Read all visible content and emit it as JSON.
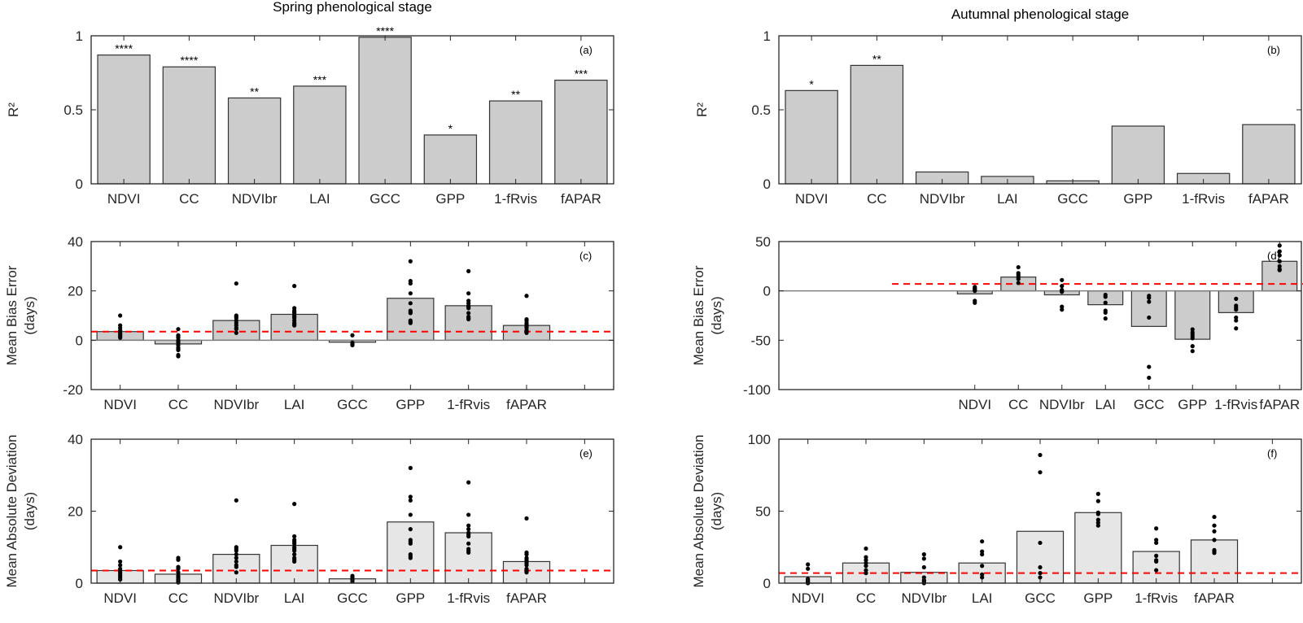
{
  "figure": {
    "titles": {
      "spring": "Spring phenological stage",
      "autumn": "Autumnal phenological stage"
    }
  },
  "chart_data": [
    {
      "id": "a",
      "type": "bar",
      "panel_tag": "(a)",
      "title": "Spring phenological stage",
      "xlabel": "",
      "ylabel": "R²",
      "ylim": [
        0,
        1
      ],
      "yticks": [
        0,
        0.5,
        1
      ],
      "ytick_labels": [
        "0",
        "0.5",
        "1"
      ],
      "categories": [
        "NDVI",
        "CC",
        "NDVIbr",
        "LAI",
        "GCC",
        "GPP",
        "1-fRvis",
        "fAPAR"
      ],
      "values": [
        0.87,
        0.79,
        0.58,
        0.66,
        0.99,
        0.33,
        0.56,
        0.7
      ],
      "significance": [
        "****",
        "****",
        "**",
        "***",
        "****",
        "*",
        "**",
        "***"
      ],
      "bar_color": "#cccccc",
      "grid": false
    },
    {
      "id": "b",
      "type": "bar",
      "panel_tag": "(b)",
      "title": "Autumnal phenological stage",
      "xlabel": "",
      "ylabel": "R²",
      "ylim": [
        0,
        1
      ],
      "yticks": [
        0,
        0.5,
        1
      ],
      "ytick_labels": [
        "0",
        "0.5",
        "1"
      ],
      "categories": [
        "NDVI",
        "CC",
        "NDVIbr",
        "LAI",
        "GCC",
        "GPP",
        "1-fRvis",
        "fAPAR"
      ],
      "values": [
        0.63,
        0.8,
        0.08,
        0.05,
        0.02,
        0.39,
        0.07,
        0.4
      ],
      "significance": [
        "*",
        "**",
        "",
        "",
        "",
        "",
        "",
        ""
      ],
      "bar_color": "#cccccc",
      "grid": false
    },
    {
      "id": "c",
      "type": "bar",
      "panel_tag": "(c)",
      "xlabel": "",
      "ylabel": "Mean Bias Error (days)",
      "ylabel_lines": [
        "Mean Bias Error",
        "(days)"
      ],
      "ylim": [
        -20,
        40
      ],
      "yticks": [
        -20,
        0,
        20,
        40
      ],
      "ytick_labels": [
        "-20",
        "0",
        "20",
        "40"
      ],
      "categories": [
        "NDVI",
        "CC",
        "NDVIbr",
        "LAI",
        "GCC",
        "GPP",
        "1-fRvis",
        "fAPAR"
      ],
      "slots": 9,
      "values": [
        3.5,
        -1.5,
        8,
        10.5,
        -0.8,
        17,
        14,
        6
      ],
      "points": [
        [
          10,
          6,
          5,
          4,
          3.5,
          3,
          2.5,
          2,
          1.5,
          1
        ],
        [
          4.5,
          2,
          1.5,
          1,
          0,
          -0.5,
          -1,
          -2,
          -3,
          -3.5,
          -4,
          -6,
          -6.5
        ],
        [
          23,
          10,
          9.5,
          9,
          8,
          7,
          6,
          5,
          4.5,
          3
        ],
        [
          22,
          13,
          12,
          11.5,
          11,
          10,
          9.5,
          9,
          8,
          7,
          6.5,
          6
        ],
        [
          2,
          -1,
          -1.5,
          -2
        ],
        [
          32,
          24,
          23,
          19,
          15,
          12,
          11.5,
          11,
          8,
          7.5,
          7
        ],
        [
          28,
          19,
          16,
          15,
          14,
          13.5,
          13,
          11,
          9.5,
          9,
          8.5
        ],
        [
          18,
          8.5,
          8,
          7,
          6.5,
          6,
          5.5,
          5,
          4,
          3.5,
          3
        ]
      ],
      "reference_line": 3.5,
      "reference_line_color": "#ff0000",
      "zero_line": 0,
      "bar_color": "#cccccc",
      "grid": false
    },
    {
      "id": "d",
      "type": "bar",
      "panel_tag": "(d)",
      "xlabel": "",
      "ylabel": "Mean Bias Error (days)",
      "ylabel_lines": [
        "Mean Bias Error",
        "(days)"
      ],
      "ylim": [
        -100,
        50
      ],
      "yticks": [
        -100,
        -50,
        0,
        50
      ],
      "ytick_labels": [
        "-100",
        "-50",
        "0",
        "50"
      ],
      "categories": [
        "NDVI",
        "CC",
        "NDVIbr",
        "LAI",
        "GCC",
        "GPP",
        "1-fRvis",
        "fAPAR"
      ],
      "slots": 12,
      "first_slot": 4,
      "values": [
        -3,
        14,
        -4,
        -14,
        -36,
        -49,
        -22,
        30
      ],
      "points": [
        [
          4,
          3,
          2,
          1,
          0,
          -10,
          -12
        ],
        [
          24,
          18,
          16,
          14,
          12,
          8
        ],
        [
          11,
          5,
          1,
          0,
          -1,
          -16,
          -19
        ],
        [
          -4,
          -6,
          -12,
          -20,
          -22,
          -28
        ],
        [
          -5,
          -7,
          -11,
          -27,
          -77,
          -88
        ],
        [
          -39,
          -42,
          -44,
          -46,
          -48,
          -56,
          -61
        ],
        [
          -8,
          -15,
          -17,
          -19,
          -27,
          -30,
          -38
        ],
        [
          46,
          40,
          36,
          30,
          25,
          22,
          21
        ]
      ],
      "reference_line": 7,
      "reference_line_color": "#ff0000",
      "zero_line": 0,
      "bar_color": "#cccccc",
      "grid": false
    },
    {
      "id": "e",
      "type": "bar",
      "panel_tag": "(e)",
      "xlabel": "",
      "ylabel": "Mean Absolute Deviation (days)",
      "ylabel_lines": [
        "Mean Absolute Deviation",
        "(days)"
      ],
      "ylim": [
        0,
        40
      ],
      "yticks": [
        0,
        20,
        40
      ],
      "ytick_labels": [
        "0",
        "20",
        "40"
      ],
      "categories": [
        "NDVI",
        "CC",
        "NDVIbr",
        "LAI",
        "GCC",
        "GPP",
        "1-fRvis",
        "fAPAR"
      ],
      "slots": 9,
      "values": [
        3.5,
        2.5,
        8,
        10.5,
        1.2,
        17,
        14,
        6
      ],
      "points": [
        [
          10,
          6,
          5,
          4,
          3.5,
          3,
          2.5,
          2,
          1.5,
          1
        ],
        [
          7,
          6.5,
          4.5,
          4,
          3,
          2,
          1.5,
          1,
          0.5,
          0.2
        ],
        [
          23,
          10,
          9.5,
          9,
          8,
          7,
          6,
          5,
          4.5,
          3
        ],
        [
          22,
          13,
          12,
          11.5,
          11,
          10,
          9.5,
          9,
          8,
          7,
          6.5,
          6
        ],
        [
          2,
          1.5,
          1,
          0.5
        ],
        [
          32,
          24,
          23,
          19,
          15,
          12,
          11.5,
          11,
          8,
          7.5,
          7
        ],
        [
          28,
          19,
          16,
          15,
          14,
          13.5,
          13,
          11,
          9.5,
          9,
          8.5
        ],
        [
          18,
          8.5,
          8,
          7,
          6.5,
          6,
          5.5,
          5,
          4,
          3.5,
          3
        ]
      ],
      "reference_line": 3.5,
      "reference_line_color": "#ff0000",
      "bar_color": "#e6e6e6",
      "grid": false
    },
    {
      "id": "f",
      "type": "bar",
      "panel_tag": "(f)",
      "xlabel": "",
      "ylabel": "Mean Absolute Deviation (days)",
      "ylabel_lines": [
        "Mean Absolute Deviation",
        "(days)"
      ],
      "ylim": [
        0,
        100
      ],
      "yticks": [
        0,
        50,
        100
      ],
      "ytick_labels": [
        "0",
        "50",
        "100"
      ],
      "categories": [
        "NDVI",
        "CC",
        "NDVIbr",
        "LAI",
        "GCC",
        "GPP",
        "1-fRvis",
        "fAPAR"
      ],
      "slots": 9,
      "values": [
        4.5,
        14,
        7.5,
        14,
        36,
        49,
        22,
        30
      ],
      "points": [
        [
          13,
          10,
          3,
          2,
          1,
          0.5,
          0
        ],
        [
          24,
          18,
          16,
          14,
          12,
          9,
          7
        ],
        [
          20,
          17,
          11,
          4,
          2,
          1,
          0
        ],
        [
          29,
          22,
          20,
          12,
          6,
          4
        ],
        [
          89,
          77,
          28,
          11,
          7,
          4
        ],
        [
          62,
          57,
          49,
          48,
          44,
          42,
          40
        ],
        [
          38,
          30,
          28,
          19,
          16,
          15,
          9
        ],
        [
          46,
          40,
          36,
          30,
          23,
          22,
          21
        ]
      ],
      "reference_line": 7,
      "reference_line_color": "#ff0000",
      "bar_color": "#e6e6e6",
      "grid": false
    }
  ]
}
